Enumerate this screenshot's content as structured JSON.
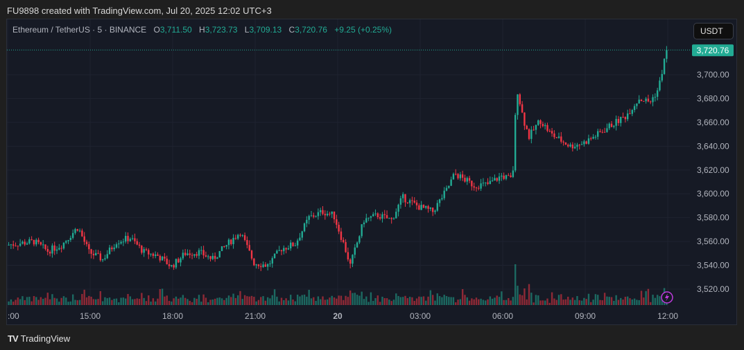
{
  "credit": "FU9898 created with TradingView.com, Jul 20, 2025 12:02 UTC+3",
  "legend": {
    "symbol": "Ethereum / TetherUS · 5 · BINANCE",
    "o_label": "O",
    "o": "3,711.50",
    "h_label": "H",
    "h": "3,723.73",
    "l_label": "L",
    "l": "3,709.13",
    "c_label": "C",
    "c": "3,720.76",
    "change": "+9.25 (+0.25%)"
  },
  "currency": "USDT",
  "brand": "TradingView",
  "colors": {
    "up": "#22ab94",
    "down": "#f23645",
    "bg": "#161a25",
    "lightning": "#c03adf"
  },
  "chart_data": {
    "type": "candlestick",
    "interval": "5",
    "last_price": "3,720.76",
    "ylim": [
      3505,
      3730
    ],
    "y_ticks": [
      "3,700.00",
      "3,680.00",
      "3,660.00",
      "3,640.00",
      "3,620.00",
      "3,600.00",
      "3,580.00",
      "3,560.00",
      "3,540.00",
      "3,520.00"
    ],
    "x_ticks": [
      ":00",
      "15:00",
      "18:00",
      "21:00",
      "20",
      "03:00",
      "06:00",
      "09:00",
      "12:00"
    ],
    "close_path": [
      [
        0,
        3557
      ],
      [
        1,
        3560
      ],
      [
        1.5,
        3552
      ],
      [
        2,
        3557
      ],
      [
        2.6,
        3572
      ],
      [
        3,
        3551
      ],
      [
        3.5,
        3545
      ],
      [
        4,
        3560
      ],
      [
        4.5,
        3563
      ],
      [
        5,
        3551
      ],
      [
        5.5,
        3548
      ],
      [
        6,
        3539
      ],
      [
        6.5,
        3550
      ],
      [
        7,
        3551
      ],
      [
        7.5,
        3545
      ],
      [
        8,
        3557
      ],
      [
        8.5,
        3568
      ],
      [
        9,
        3542
      ],
      [
        9.5,
        3540
      ],
      [
        10,
        3554
      ],
      [
        10.5,
        3558
      ],
      [
        11,
        3580
      ],
      [
        11.5,
        3585
      ],
      [
        11.9,
        3582
      ],
      [
        12.3,
        3555
      ],
      [
        12.5,
        3540
      ],
      [
        13,
        3578
      ],
      [
        13.5,
        3582
      ],
      [
        14,
        3578
      ],
      [
        14.4,
        3597
      ],
      [
        15,
        3589
      ],
      [
        15.5,
        3585
      ],
      [
        16,
        3603
      ],
      [
        16.3,
        3617
      ],
      [
        17,
        3607
      ],
      [
        17.5,
        3608
      ],
      [
        18,
        3615
      ],
      [
        18.4,
        3612
      ],
      [
        18.55,
        3690
      ],
      [
        18.8,
        3662
      ],
      [
        19,
        3648
      ],
      [
        19.4,
        3662
      ],
      [
        19.8,
        3650
      ],
      [
        20.5,
        3640
      ],
      [
        21,
        3643
      ],
      [
        21.5,
        3650
      ],
      [
        22,
        3658
      ],
      [
        22.5,
        3665
      ],
      [
        23,
        3680
      ],
      [
        23.4,
        3677
      ],
      [
        23.7,
        3688
      ],
      [
        24,
        3720.76
      ]
    ]
  }
}
